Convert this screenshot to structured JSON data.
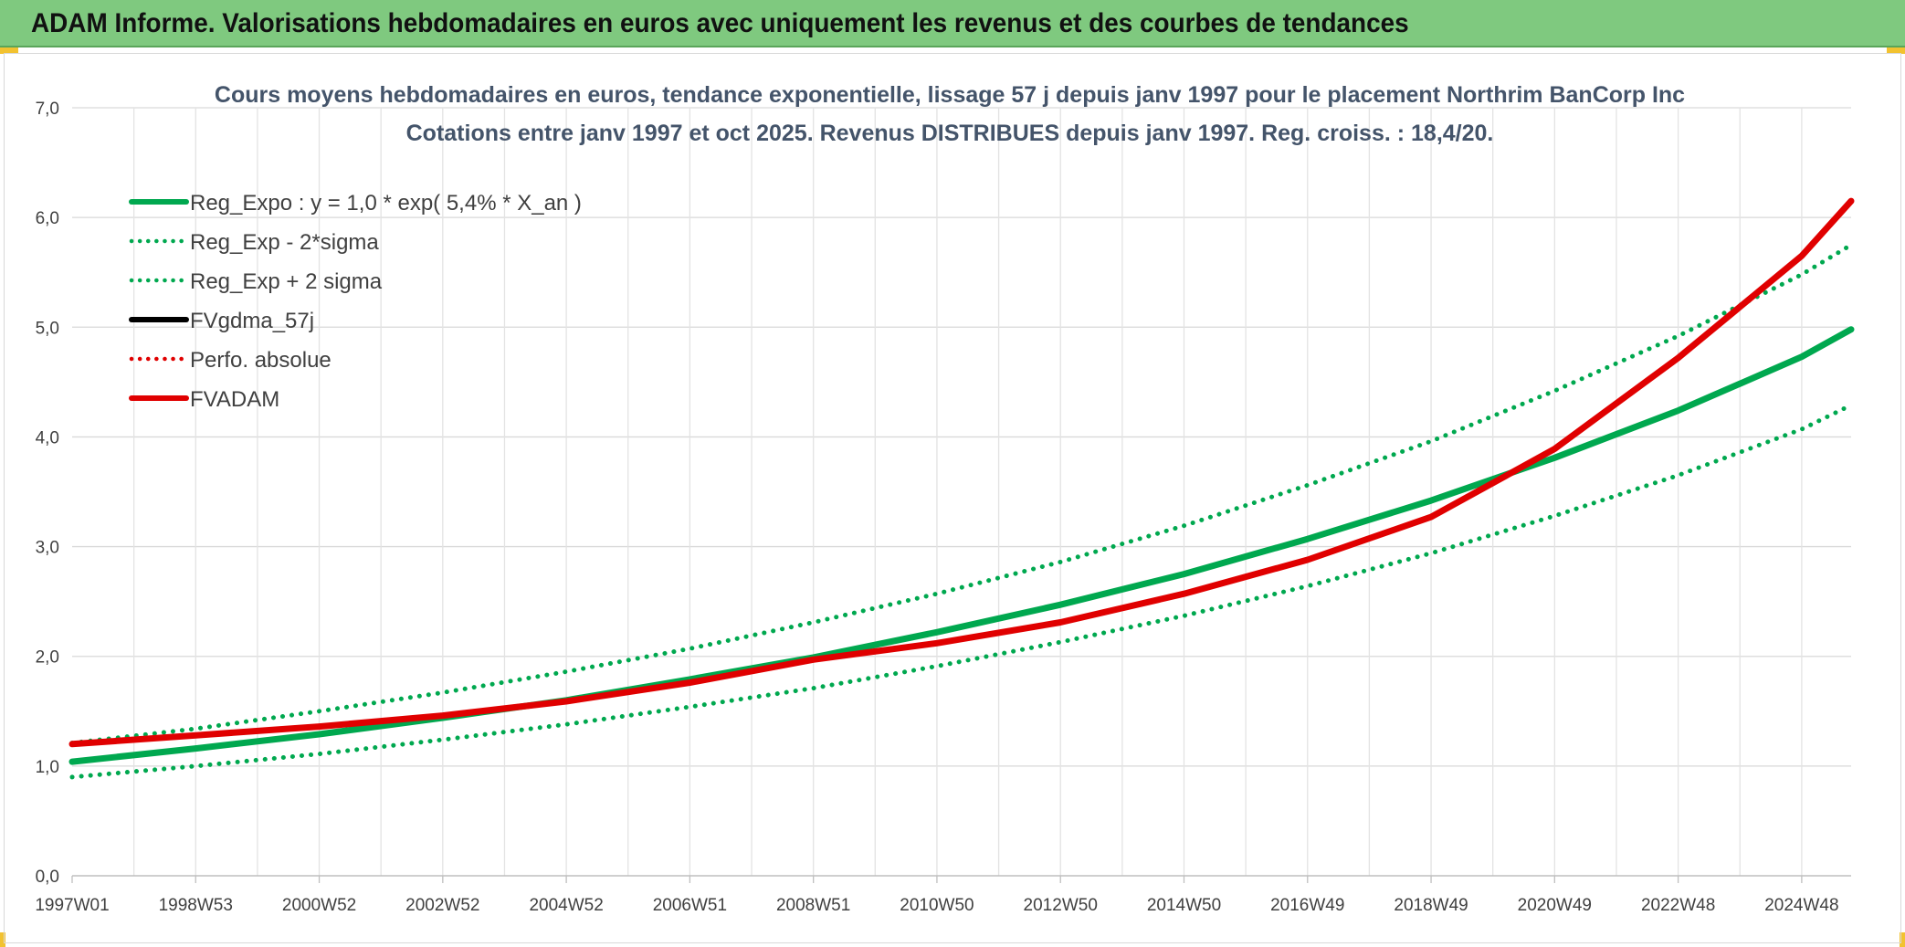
{
  "header": {
    "title": "ADAM Informe. Valorisations hebdomadaires en euros avec uniquement les revenus et des courbes de tendances"
  },
  "chart_data": {
    "type": "line",
    "title": "Cours moyens hebdomadaires en euros, tendance exponentielle, lissage 57 j depuis janv 1997 pour le placement Northrim BanCorp Inc",
    "subtitle": "Cotations entre janv 1997 et oct 2025. Revenus DISTRIBUES depuis janv 1997. Reg. croiss. : 18,4/20.",
    "xlabel": "",
    "ylabel": "",
    "x_range": [
      1997.0,
      2025.8
    ],
    "ylim": [
      0,
      7
    ],
    "y_ticks": [
      "0,0",
      "1,0",
      "2,0",
      "3,0",
      "4,0",
      "5,0",
      "6,0",
      "7,0"
    ],
    "x_tick_labels": [
      "1997W01",
      "1998W53",
      "2000W52",
      "2002W52",
      "2004W52",
      "2006W51",
      "2008W51",
      "2010W50",
      "2012W50",
      "2014W50",
      "2016W49",
      "2018W49",
      "2020W49",
      "2022W48",
      "2024W48"
    ],
    "x_tick_years": [
      1997,
      1999,
      2001,
      2003,
      2005,
      2007,
      2009,
      2011,
      2013,
      2015,
      2017,
      2019,
      2021,
      2023,
      2025
    ],
    "grid": true,
    "legend_position": "top-left",
    "series": [
      {
        "name": "Reg_Expo : y = 1,0 * exp( 5,4% *  X_an )",
        "color": "#00a84f",
        "style": "solid",
        "x": [
          1997,
          1999,
          2001,
          2003,
          2005,
          2007,
          2009,
          2011,
          2013,
          2015,
          2017,
          2019,
          2021,
          2023,
          2025,
          2025.8
        ],
        "values": [
          1.04,
          1.16,
          1.29,
          1.44,
          1.6,
          1.79,
          1.99,
          2.22,
          2.47,
          2.75,
          3.07,
          3.42,
          3.81,
          4.24,
          4.73,
          4.98
        ]
      },
      {
        "name": "Reg_Exp - 2*sigma",
        "color": "#00a84f",
        "style": "dotted",
        "x": [
          1997,
          1999,
          2001,
          2003,
          2005,
          2007,
          2009,
          2011,
          2013,
          2015,
          2017,
          2019,
          2021,
          2023,
          2025,
          2025.8
        ],
        "values": [
          0.9,
          1.0,
          1.11,
          1.24,
          1.38,
          1.54,
          1.71,
          1.91,
          2.13,
          2.37,
          2.64,
          2.94,
          3.28,
          3.65,
          4.07,
          4.29
        ]
      },
      {
        "name": "Reg_Exp + 2 sigma",
        "color": "#00a84f",
        "style": "dotted",
        "x": [
          1997,
          1999,
          2001,
          2003,
          2005,
          2007,
          2009,
          2011,
          2013,
          2015,
          2017,
          2019,
          2021,
          2023,
          2025,
          2025.8
        ],
        "values": [
          1.21,
          1.34,
          1.5,
          1.67,
          1.86,
          2.07,
          2.31,
          2.57,
          2.86,
          3.19,
          3.56,
          3.96,
          4.42,
          4.92,
          5.48,
          5.75
        ]
      },
      {
        "name": "FVgdma_57j",
        "color": "#000000",
        "style": "solid",
        "x": [
          1997,
          1999,
          2001,
          2003,
          2005,
          2007,
          2009,
          2011,
          2013,
          2015,
          2017,
          2019,
          2021,
          2023,
          2025,
          2025.8
        ],
        "values": [
          1.2,
          1.28,
          1.36,
          1.46,
          1.59,
          1.76,
          1.97,
          2.12,
          2.31,
          2.57,
          2.88,
          3.27,
          3.89,
          4.72,
          5.65,
          6.15
        ]
      },
      {
        "name": "Perfo. absolue",
        "color": "#e00000",
        "style": "dotted",
        "x": [
          1997,
          1999,
          2001,
          2003,
          2005,
          2007,
          2009,
          2011,
          2013,
          2015,
          2017,
          2019,
          2021,
          2023,
          2025,
          2025.8
        ],
        "values": [
          1.2,
          1.28,
          1.36,
          1.46,
          1.59,
          1.76,
          1.97,
          2.12,
          2.31,
          2.57,
          2.88,
          3.27,
          3.89,
          4.72,
          5.65,
          6.15
        ]
      },
      {
        "name": "FVADAM",
        "color": "#e00000",
        "style": "solid",
        "x": [
          1997,
          1999,
          2001,
          2003,
          2005,
          2007,
          2009,
          2011,
          2013,
          2015,
          2017,
          2019,
          2021,
          2023,
          2025,
          2025.8
        ],
        "values": [
          1.2,
          1.28,
          1.36,
          1.46,
          1.59,
          1.76,
          1.97,
          2.12,
          2.31,
          2.57,
          2.88,
          3.27,
          3.89,
          4.72,
          5.65,
          6.15
        ]
      }
    ]
  }
}
